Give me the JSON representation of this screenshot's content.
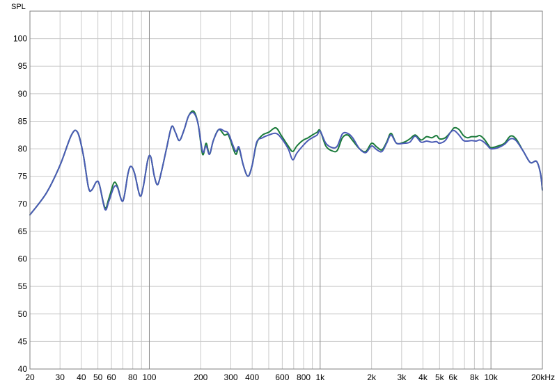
{
  "chart_data": {
    "type": "line",
    "xscale": "log",
    "ylabel": "SPL",
    "xlim": [
      20,
      20000
    ],
    "ylim": [
      40,
      105
    ],
    "grid": true,
    "y_ticks": [
      40,
      45,
      50,
      55,
      60,
      65,
      70,
      75,
      80,
      85,
      90,
      95,
      100
    ],
    "x_ticks": [
      {
        "v": 20,
        "label": "20"
      },
      {
        "v": 30,
        "label": "30"
      },
      {
        "v": 40,
        "label": "40"
      },
      {
        "v": 50,
        "label": "50"
      },
      {
        "v": 60,
        "label": "60"
      },
      {
        "v": 80,
        "label": "80"
      },
      {
        "v": 100,
        "label": "100"
      },
      {
        "v": 200,
        "label": "200"
      },
      {
        "v": 300,
        "label": "300"
      },
      {
        "v": 400,
        "label": "400"
      },
      {
        "v": 600,
        "label": "600"
      },
      {
        "v": 800,
        "label": "800"
      },
      {
        "v": 1000,
        "label": "1k"
      },
      {
        "v": 2000,
        "label": "2k"
      },
      {
        "v": 3000,
        "label": "3k"
      },
      {
        "v": 4000,
        "label": "4k"
      },
      {
        "v": 5000,
        "label": "5k"
      },
      {
        "v": 6000,
        "label": "6k"
      },
      {
        "v": 8000,
        "label": "8k"
      },
      {
        "v": 10000,
        "label": "10k"
      },
      {
        "v": 20000,
        "label": "20kHz"
      }
    ],
    "series": [
      {
        "color": "#1a7a3a",
        "points": [
          [
            20,
            68
          ],
          [
            25,
            72
          ],
          [
            30,
            77
          ],
          [
            35,
            82.5
          ],
          [
            38,
            83
          ],
          [
            41,
            79
          ],
          [
            44,
            73
          ],
          [
            46,
            72.5
          ],
          [
            49,
            74
          ],
          [
            51,
            73.5
          ],
          [
            55,
            69.3
          ],
          [
            58,
            71
          ],
          [
            62,
            73.8
          ],
          [
            65,
            73.2
          ],
          [
            70,
            70.5
          ],
          [
            75,
            75.5
          ],
          [
            78,
            76.8
          ],
          [
            82,
            75.5
          ],
          [
            88,
            71.5
          ],
          [
            92,
            73
          ],
          [
            98,
            78
          ],
          [
            102,
            78.5
          ],
          [
            107,
            75
          ],
          [
            112,
            73.5
          ],
          [
            118,
            76
          ],
          [
            126,
            80
          ],
          [
            135,
            84
          ],
          [
            142,
            83
          ],
          [
            150,
            81.5
          ],
          [
            160,
            83.5
          ],
          [
            170,
            86
          ],
          [
            182,
            86.8
          ],
          [
            193,
            84.5
          ],
          [
            205,
            79
          ],
          [
            215,
            81
          ],
          [
            225,
            79
          ],
          [
            237,
            81.5
          ],
          [
            255,
            83.5
          ],
          [
            275,
            82.5
          ],
          [
            290,
            82.5
          ],
          [
            310,
            80
          ],
          [
            322,
            79
          ],
          [
            335,
            80
          ],
          [
            355,
            77
          ],
          [
            378,
            75
          ],
          [
            400,
            77
          ],
          [
            425,
            81
          ],
          [
            460,
            82.5
          ],
          [
            500,
            83
          ],
          [
            550,
            83.8
          ],
          [
            590,
            82.5
          ],
          [
            650,
            80.5
          ],
          [
            690,
            79.5
          ],
          [
            730,
            80.5
          ],
          [
            790,
            81.5
          ],
          [
            850,
            82
          ],
          [
            900,
            82.5
          ],
          [
            960,
            83
          ],
          [
            1000,
            83.3
          ],
          [
            1080,
            80.5
          ],
          [
            1180,
            79.6
          ],
          [
            1260,
            79.7
          ],
          [
            1350,
            82
          ],
          [
            1450,
            82.5
          ],
          [
            1550,
            81.5
          ],
          [
            1700,
            80
          ],
          [
            1850,
            79.5
          ],
          [
            2000,
            81
          ],
          [
            2150,
            80.3
          ],
          [
            2300,
            79.8
          ],
          [
            2450,
            81.2
          ],
          [
            2600,
            82.8
          ],
          [
            2800,
            81
          ],
          [
            3100,
            81.2
          ],
          [
            3350,
            81.8
          ],
          [
            3600,
            82.5
          ],
          [
            3900,
            81.6
          ],
          [
            4200,
            82.2
          ],
          [
            4500,
            82
          ],
          [
            4800,
            82.4
          ],
          [
            5000,
            81.8
          ],
          [
            5400,
            82
          ],
          [
            5800,
            83
          ],
          [
            6100,
            83.8
          ],
          [
            6500,
            83.5
          ],
          [
            6900,
            82.4
          ],
          [
            7300,
            82
          ],
          [
            7700,
            82.2
          ],
          [
            8200,
            82.2
          ],
          [
            8600,
            82.4
          ],
          [
            9100,
            81.8
          ],
          [
            9600,
            80.8
          ],
          [
            10000,
            80.2
          ],
          [
            11000,
            80.5
          ],
          [
            12000,
            81
          ],
          [
            13000,
            82.3
          ],
          [
            14000,
            81.8
          ],
          [
            15500,
            79.5
          ],
          [
            17000,
            77.5
          ],
          [
            18500,
            77.7
          ],
          [
            19500,
            75.5
          ],
          [
            20000,
            72.5
          ]
        ]
      },
      {
        "color": "#4a5bb5",
        "points": [
          [
            20,
            68
          ],
          [
            25,
            72
          ],
          [
            30,
            77
          ],
          [
            35,
            82.5
          ],
          [
            38,
            83
          ],
          [
            41,
            79
          ],
          [
            44,
            73
          ],
          [
            46,
            72.5
          ],
          [
            49,
            74
          ],
          [
            51,
            73.5
          ],
          [
            55,
            69
          ],
          [
            58,
            70.5
          ],
          [
            62,
            73
          ],
          [
            65,
            73
          ],
          [
            70,
            70.5
          ],
          [
            75,
            75.5
          ],
          [
            78,
            76.8
          ],
          [
            82,
            75.5
          ],
          [
            88,
            71.5
          ],
          [
            92,
            73
          ],
          [
            98,
            78
          ],
          [
            102,
            78.5
          ],
          [
            107,
            75
          ],
          [
            112,
            73.5
          ],
          [
            118,
            76
          ],
          [
            126,
            80
          ],
          [
            135,
            84
          ],
          [
            142,
            83
          ],
          [
            150,
            81.5
          ],
          [
            160,
            83.5
          ],
          [
            170,
            86
          ],
          [
            182,
            86.5
          ],
          [
            193,
            84.5
          ],
          [
            205,
            79.5
          ],
          [
            215,
            80.5
          ],
          [
            225,
            79
          ],
          [
            237,
            81.5
          ],
          [
            255,
            83.5
          ],
          [
            275,
            83.2
          ],
          [
            290,
            82.8
          ],
          [
            310,
            80.5
          ],
          [
            322,
            79.5
          ],
          [
            335,
            80.3
          ],
          [
            355,
            77
          ],
          [
            378,
            75
          ],
          [
            400,
            77
          ],
          [
            425,
            81.2
          ],
          [
            460,
            82
          ],
          [
            500,
            82.5
          ],
          [
            550,
            82.8
          ],
          [
            590,
            82
          ],
          [
            650,
            80
          ],
          [
            690,
            78
          ],
          [
            730,
            79.2
          ],
          [
            790,
            80.5
          ],
          [
            850,
            81.5
          ],
          [
            900,
            82
          ],
          [
            960,
            82.5
          ],
          [
            1000,
            83.2
          ],
          [
            1080,
            81
          ],
          [
            1180,
            80.2
          ],
          [
            1260,
            80.5
          ],
          [
            1350,
            82.7
          ],
          [
            1450,
            82.8
          ],
          [
            1550,
            82
          ],
          [
            1700,
            80
          ],
          [
            1850,
            79.3
          ],
          [
            2000,
            80.5
          ],
          [
            2150,
            79.8
          ],
          [
            2300,
            79.5
          ],
          [
            2450,
            81
          ],
          [
            2600,
            82.5
          ],
          [
            2800,
            81
          ],
          [
            3100,
            81
          ],
          [
            3350,
            81.2
          ],
          [
            3600,
            82.3
          ],
          [
            3900,
            81.2
          ],
          [
            4200,
            81.4
          ],
          [
            4500,
            81.2
          ],
          [
            4800,
            81.3
          ],
          [
            5000,
            81
          ],
          [
            5400,
            81.5
          ],
          [
            5800,
            83
          ],
          [
            6100,
            83.3
          ],
          [
            6500,
            82.5
          ],
          [
            6900,
            81.5
          ],
          [
            7300,
            81.4
          ],
          [
            7700,
            81.5
          ],
          [
            8200,
            81.4
          ],
          [
            8600,
            81.6
          ],
          [
            9100,
            81.2
          ],
          [
            9600,
            80.5
          ],
          [
            10000,
            80
          ],
          [
            11000,
            80.2
          ],
          [
            12000,
            80.8
          ],
          [
            13000,
            81.8
          ],
          [
            14000,
            81.5
          ],
          [
            15500,
            79.5
          ],
          [
            17000,
            77.5
          ],
          [
            18500,
            77.7
          ],
          [
            19500,
            75.5
          ],
          [
            20000,
            72.5
          ]
        ]
      }
    ]
  }
}
